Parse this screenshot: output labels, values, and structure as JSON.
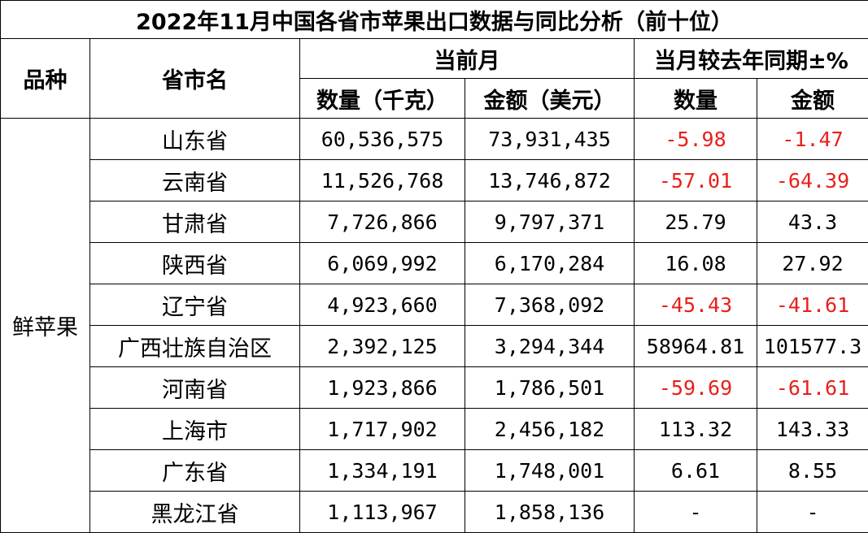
{
  "title": "2022年11月中国各省市苹果出口数据与同比分析（前十位）",
  "headers": {
    "variety": "品种",
    "province": "省市名",
    "current_month": "当前月",
    "yoy": "当月较去年同期±%",
    "qty": "数量（千克）",
    "amount": "金额（美元）",
    "yoy_qty": "数量",
    "yoy_amount": "金额"
  },
  "category": "鲜苹果",
  "colors": {
    "negative": "#e8201c",
    "text": "#000000",
    "border": "#000000"
  },
  "rows": [
    {
      "province": "山东省",
      "qty": "60,536,575",
      "amount": "73,931,435",
      "yoy_qty": "-5.98",
      "yoy_amount": "-1.47"
    },
    {
      "province": "云南省",
      "qty": "11,526,768",
      "amount": "13,746,872",
      "yoy_qty": "-57.01",
      "yoy_amount": "-64.39"
    },
    {
      "province": "甘肃省",
      "qty": "7,726,866",
      "amount": "9,797,371",
      "yoy_qty": "25.79",
      "yoy_amount": "43.3"
    },
    {
      "province": "陕西省",
      "qty": "6,069,992",
      "amount": "6,170,284",
      "yoy_qty": "16.08",
      "yoy_amount": "27.92"
    },
    {
      "province": "辽宁省",
      "qty": "4,923,660",
      "amount": "7,368,092",
      "yoy_qty": "-45.43",
      "yoy_amount": "-41.61"
    },
    {
      "province": "广西壮族自治区",
      "qty": "2,392,125",
      "amount": "3,294,344",
      "yoy_qty": "58964.81",
      "yoy_amount": "101577.3"
    },
    {
      "province": "河南省",
      "qty": "1,923,866",
      "amount": "1,786,501",
      "yoy_qty": "-59.69",
      "yoy_amount": "-61.61"
    },
    {
      "province": "上海市",
      "qty": "1,717,902",
      "amount": "2,456,182",
      "yoy_qty": "113.32",
      "yoy_amount": "143.33"
    },
    {
      "province": "广东省",
      "qty": "1,334,191",
      "amount": "1,748,001",
      "yoy_qty": "6.61",
      "yoy_amount": "8.55"
    },
    {
      "province": "黑龙江省",
      "qty": "1,113,967",
      "amount": "1,858,136",
      "yoy_qty": "-",
      "yoy_amount": "-"
    }
  ]
}
